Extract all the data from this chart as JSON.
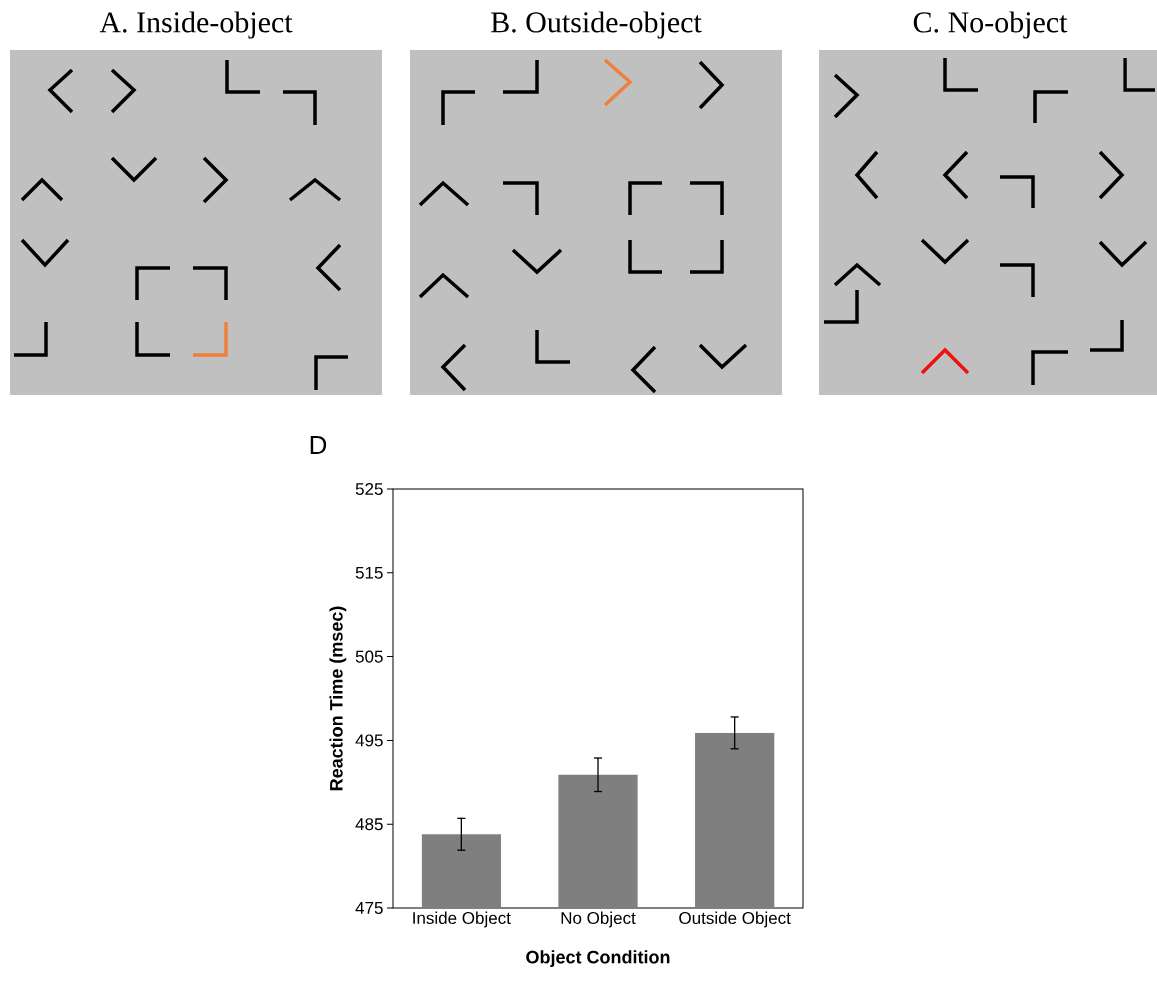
{
  "chart_data": {
    "type": "bar",
    "annotations": [
      "A. Inside-object",
      "B. Outside-object",
      "C. No-object",
      "D"
    ],
    "xlabel": "Object Condition",
    "ylabel": "Reaction Time (msec)",
    "categories": [
      "Inside Object",
      "No Object",
      "Outside Object"
    ],
    "values": [
      483.8,
      490.9,
      495.9
    ],
    "errors": [
      1.9,
      2.0,
      1.9
    ],
    "color": "#7f7f7f",
    "ylim": [
      475,
      525
    ],
    "yticks": [
      475,
      485,
      495,
      505,
      515,
      525
    ]
  }
}
